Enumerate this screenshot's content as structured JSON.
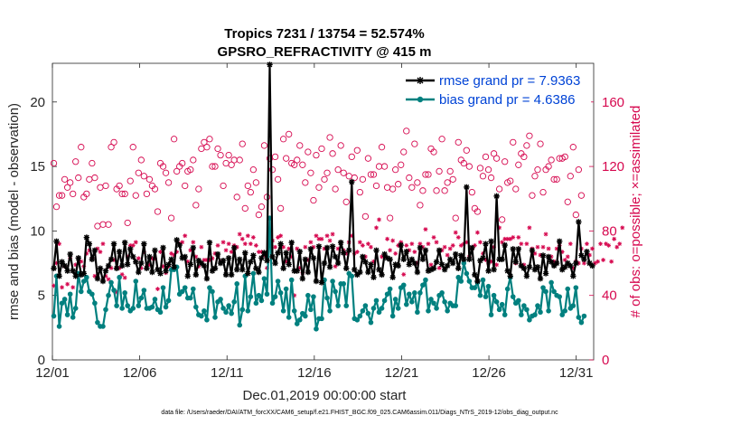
{
  "colors": {
    "rmse": "#000000",
    "bias": "#00807f",
    "obs": "#d6084f",
    "legend_text": "#0043d6",
    "axis": "#262626"
  },
  "chart_data": {
    "type": "line",
    "title_line1": "Tropics 7231 / 13754 = 52.574%",
    "title_line2": "GPSRO_REFRACTIVITY @ 415 m",
    "xlabel": "Dec.01,2019 00:00:00 start",
    "ylabel": "rmse and bias (model - observation)",
    "ylabel_right": "# of obs: o=possible; ×=assimilated",
    "xlim": [
      1,
      32
    ],
    "ylim": [
      0,
      23
    ],
    "ylim_right": [
      0,
      184
    ],
    "x_ticks": [
      1,
      6,
      11,
      16,
      21,
      26,
      31
    ],
    "x_tick_labels": [
      "12/01",
      "12/06",
      "12/11",
      "12/16",
      "12/21",
      "12/26",
      "12/31"
    ],
    "y_ticks": [
      0,
      5,
      10,
      15,
      20
    ],
    "y_tick_labels": [
      "0",
      "5",
      "10",
      "15",
      "20"
    ],
    "y_ticks_right": [
      0,
      40,
      80,
      120,
      160
    ],
    "y_tick_labels_right": [
      "0",
      "40",
      "80",
      "120",
      "160"
    ],
    "legend": [
      {
        "label": "rmse grand pr = 7.9363",
        "series": "rmse"
      },
      {
        "label": "bias grand pr = 4.6386",
        "series": "bias"
      }
    ],
    "footnote": "data file: /Users/raeder/DAI/ATM_forcXX/CAM6_setup/f.e21.FHIST_BGC.f09_025.CAM6assim.011/Diags_NTrS_2019-12/obs_diag_output.nc",
    "series": [
      {
        "name": "rmse",
        "axis": "left",
        "marker": "asterisk",
        "values": [
          7.1,
          9.2,
          6.5,
          7.6,
          7.3,
          6.9,
          8.2,
          6.9,
          6.5,
          7.9,
          6.6,
          6.7,
          9.5,
          9.0,
          7.8,
          8.5,
          6.3,
          7.1,
          6.1,
          6.9,
          7.3,
          7.8,
          9.0,
          7.1,
          8.4,
          7.3,
          9.1,
          7.4,
          8.6,
          8.0,
          7.6,
          6.8,
          7.5,
          9.0,
          7.1,
          8.0,
          6.8,
          8.5,
          7.0,
          6.7,
          8.7,
          6.9,
          7.4,
          7.8,
          7.2,
          9.3,
          8.9,
          7.9,
          8.0,
          6.5,
          7.4,
          8.7,
          6.6,
          7.7,
          7.5,
          7.3,
          6.3,
          9.1,
          6.9,
          7.1,
          8.2,
          7.5,
          7.7,
          6.6,
          7.9,
          6.6,
          8.7,
          7.0,
          7.8,
          7.0,
          8.3,
          6.7,
          7.6,
          8.1,
          7.1,
          6.8,
          7.9,
          8.3,
          7.7,
          22.9,
          8.0,
          7.5,
          8.3,
          9.0,
          7.1,
          8.3,
          7.4,
          9.1,
          6.9,
          6.9,
          8.4,
          6.3,
          7.8,
          6.8,
          8.6,
          7.9,
          6.1,
          8.8,
          6.0,
          7.5,
          8.7,
          7.2,
          8.8,
          8.0,
          7.5,
          9.1,
          8.3,
          7.1,
          8.5,
          13.8,
          7.0,
          6.6,
          6.8,
          8.0,
          7.6,
          6.8,
          7.4,
          6.4,
          8.5,
          7.0,
          6.6,
          8.2,
          7.9,
          7.8,
          6.4,
          7.4,
          7.3,
          8.9,
          7.8,
          8.4,
          7.4,
          7.8,
          7.5,
          6.8,
          8.7,
          7.8,
          8.5,
          6.9,
          7.0,
          7.1,
          7.6,
          8.5,
          7.4,
          7.0,
          7.3,
          7.8,
          7.5,
          8.2,
          7.1,
          8.1,
          7.8,
          13.4,
          7.8,
          8.7,
          6.6,
          6.1,
          7.7,
          7.9,
          9.0,
          6.9,
          9.2,
          7.0,
          12.7,
          7.8,
          7.8,
          8.9,
          6.9,
          6.5,
          8.6,
          7.6,
          8.6,
          7.3,
          7.1,
          6.5,
          7.2,
          8.5,
          7.0,
          7.2,
          6.3,
          8.1,
          6.7,
          8.0,
          7.6,
          7.3,
          7.5,
          9.2,
          7.0,
          7.2,
          7.5,
          7.3,
          6.5,
          7.5,
          10.7,
          8.1,
          7.8,
          8.4,
          7.5,
          7.3
        ]
      },
      {
        "name": "bias",
        "axis": "left",
        "marker": "dot",
        "values": [
          3.4,
          6.5,
          2.6,
          4.4,
          4.7,
          3.5,
          5.1,
          3.3,
          4.0,
          6.7,
          5.3,
          6.1,
          6.4,
          5.3,
          5.1,
          4.4,
          2.9,
          2.6,
          2.6,
          3.9,
          5.0,
          6.0,
          5.4,
          4.2,
          6.4,
          4.0,
          5.2,
          4.2,
          3.8,
          4.0,
          6.1,
          4.2,
          4.8,
          5.4,
          4.0,
          4.0,
          4.1,
          4.7,
          3.9,
          3.7,
          5.6,
          4.1,
          4.6,
          7.0,
          7.0,
          7.2,
          5.1,
          5.3,
          5.6,
          4.8,
          4.8,
          5.5,
          4.1,
          3.5,
          3.4,
          3.8,
          3.1,
          5.6,
          5.3,
          3.3,
          4.5,
          4.7,
          4.0,
          3.7,
          4.2,
          3.6,
          4.5,
          5.9,
          2.7,
          3.9,
          6.5,
          3.8,
          4.9,
          6.7,
          4.4,
          5.0,
          4.6,
          6.3,
          5.1,
          11.0,
          4.4,
          4.9,
          6.1,
          5.2,
          3.8,
          5.5,
          3.3,
          6.2,
          3.8,
          2.8,
          3.1,
          3.6,
          3.4,
          5.0,
          3.9,
          4.9,
          2.4,
          3.2,
          3.2,
          6.2,
          4.8,
          3.8,
          6.1,
          5.3,
          4.2,
          5.9,
          5.9,
          4.2,
          6.7,
          6.5,
          3.2,
          3.1,
          3.4,
          3.8,
          4.2,
          3.6,
          2.9,
          4.0,
          4.6,
          3.7,
          4.0,
          4.6,
          5.1,
          5.5,
          3.4,
          4.7,
          4.0,
          5.6,
          5.8,
          4.3,
          5.1,
          4.5,
          5.2,
          3.7,
          5.2,
          5.8,
          6.2,
          3.8,
          4.7,
          4.4,
          4.0,
          5.0,
          5.2,
          4.5,
          3.8,
          4.4,
          4.2,
          4.2,
          6.4,
          6.1,
          7.5,
          6.7,
          6.1,
          5.6,
          5.6,
          6.0,
          5.0,
          6.2,
          4.9,
          5.7,
          3.5,
          5.0,
          4.5,
          3.9,
          4.3,
          3.5,
          5.5,
          6.4,
          4.9,
          4.4,
          4.6,
          3.5,
          4.2,
          3.9,
          3.1,
          3.4,
          3.5,
          4.2,
          3.7,
          5.6,
          5.3,
          3.8,
          6.0,
          5.3,
          5.0,
          4.9,
          3.5,
          3.8,
          5.5,
          4.0,
          4.2,
          5.6,
          3.3,
          2.9,
          3.4
        ]
      },
      {
        "name": "possible",
        "axis": "right",
        "marker": "circle",
        "values": [
          122,
          95,
          102,
          102,
          112,
          107,
          110,
          103,
          123,
          113,
          132,
          101,
          103,
          112,
          122,
          113,
          83,
          107,
          84,
          108,
          84,
          132,
          135,
          106,
          108,
          103,
          103,
          85,
          111,
          132,
          102,
          116,
          124,
          114,
          103,
          112,
          108,
          106,
          92,
          122,
          120,
          116,
          110,
          88,
          137,
          117,
          120,
          122,
          108,
          117,
          118,
          124,
          96,
          106,
          131,
          135,
          132,
          137,
          120,
          120,
          131,
          127,
          108,
          122,
          127,
          121,
          124,
          101,
          124,
          134,
          94,
          108,
          104,
          118,
          110,
          90,
          95,
          133,
          101,
          125,
          118,
          126,
          112,
          94,
          137,
          125,
          140,
          122,
          121,
          124,
          133,
          121,
          110,
          129,
          116,
          99,
          127,
          107,
          131,
          112,
          116,
          138,
          128,
          106,
          118,
          133,
          116,
          98,
          114,
          126,
          113,
          130,
          104,
          112,
          89,
          125,
          115,
          115,
          108,
          120,
          132,
          120,
          107,
          88,
          106,
          118,
          109,
          121,
          129,
          142,
          113,
          107,
          134,
          110,
          96,
          105,
          115,
          115,
          131,
          129,
          105,
          117,
          137,
          105,
          110,
          117,
          112,
          88,
          135,
          124,
          122,
          130,
          120,
          104,
          94,
          92,
          119,
          114,
          126,
          118,
          113,
          128,
          125,
          106,
          87,
          123,
          110,
          111,
          135,
          106,
          121,
          128,
          126,
          133,
          139,
          102,
          114,
          118,
          134,
          104,
          118,
          120,
          124,
          112,
          112,
          125,
          125,
          126,
          98,
          114,
          132,
          90,
          118,
          102
        ]
      },
      {
        "name": "assimilated",
        "axis": "right",
        "marker": "cross",
        "values": [
          46,
          60,
          72,
          45,
          58,
          47,
          63,
          45,
          59,
          63,
          61,
          58,
          66,
          68,
          63,
          52,
          69,
          67,
          72,
          52,
          50,
          57,
          62,
          42,
          57,
          53,
          51,
          64,
          71,
          71,
          73,
          63,
          57,
          67,
          58,
          59,
          63,
          63,
          44,
          67,
          58,
          54,
          58,
          66,
          65,
          67,
          72,
          73,
          77,
          61,
          68,
          73,
          64,
          58,
          70,
          62,
          62,
          62,
          63,
          66,
          71,
          61,
          73,
          68,
          72,
          67,
          71,
          70,
          78,
          75,
          72,
          77,
          72,
          76,
          71,
          67,
          67,
          65,
          57,
          77,
          74,
          70,
          76,
          77,
          70,
          61,
          69,
          64,
          40,
          69,
          57,
          54,
          70,
          62,
          73,
          70,
          77,
          75,
          75,
          69,
          77,
          74,
          78,
          58,
          69,
          73,
          68,
          66,
          73,
          77,
          66,
          67,
          73,
          71,
          64,
          72,
          70,
          61,
          82,
          87,
          64,
          64,
          75,
          68,
          74,
          66,
          71,
          73,
          53,
          71,
          68,
          72,
          67,
          60,
          72,
          70,
          81,
          72,
          59,
          76,
          73,
          57,
          68,
          70,
          65,
          69,
          71,
          79,
          76,
          71,
          72,
          73,
          64,
          69,
          71,
          79,
          73,
          66,
          62,
          60,
          61,
          70,
          59,
          82,
          73,
          75,
          75,
          75,
          76,
          60,
          76,
          72,
          59,
          72,
          82,
          69,
          66,
          70,
          65,
          70,
          78,
          69,
          64,
          61,
          69,
          71,
          67,
          62,
          64,
          72,
          57,
          61,
          60,
          69,
          60,
          72,
          65,
          69,
          60,
          61,
          72,
          62,
          72,
          71,
          61,
          75,
          70,
          72,
          82
        ]
      }
    ]
  }
}
